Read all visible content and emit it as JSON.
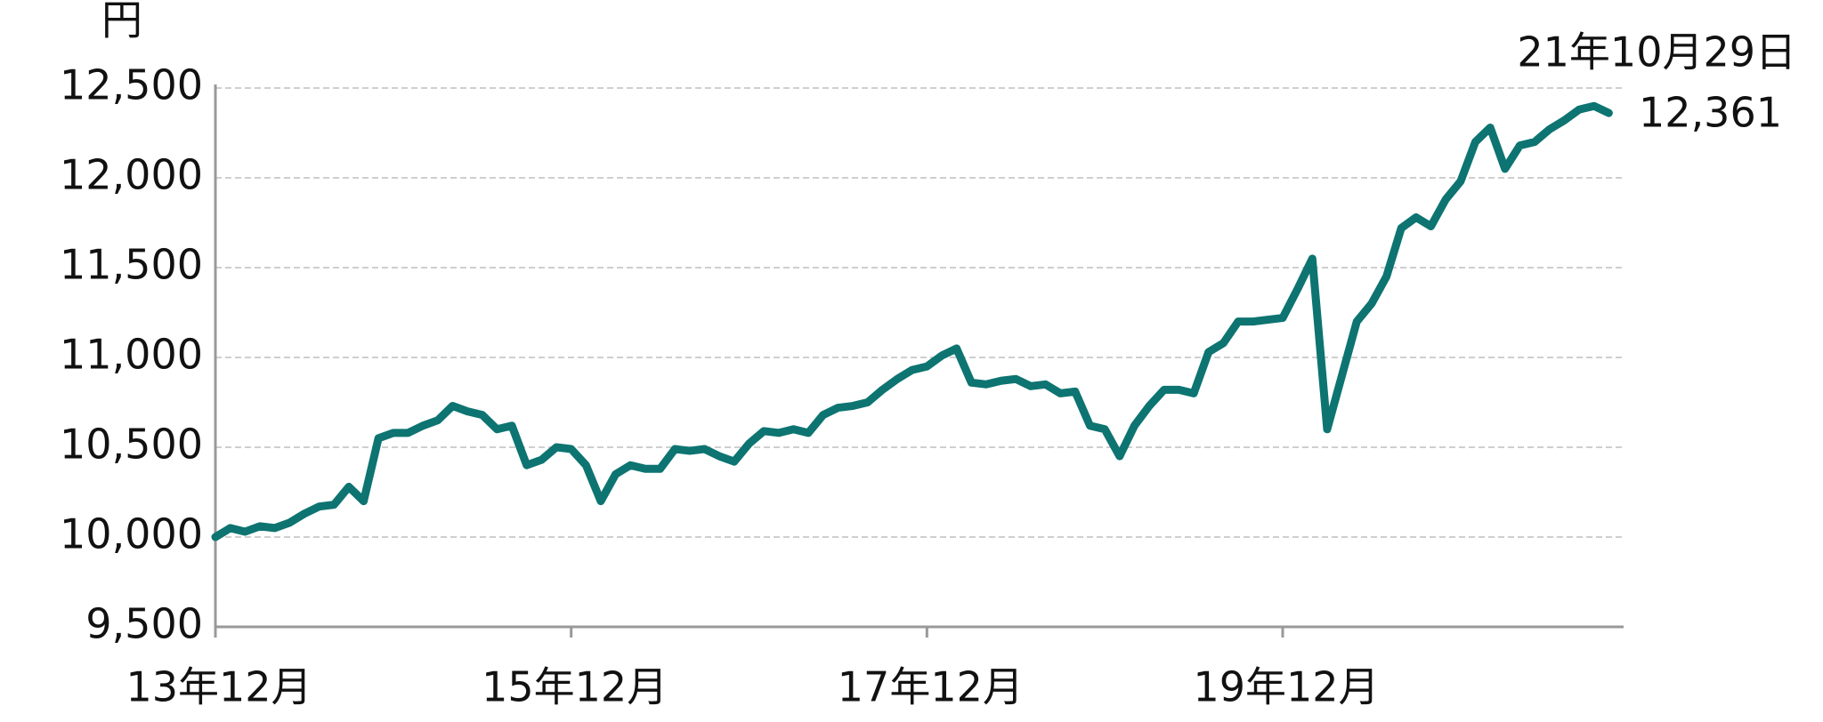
{
  "chart_data": {
    "type": "line",
    "y_unit": "円",
    "annotation": "21年10月29日",
    "categories": [
      "13年12月",
      null,
      null,
      null,
      null,
      null,
      null,
      null,
      null,
      null,
      null,
      null,
      null,
      null,
      null,
      null,
      null,
      null,
      null,
      null,
      null,
      null,
      null,
      null,
      "15年12月",
      null,
      null,
      null,
      null,
      null,
      null,
      null,
      null,
      null,
      null,
      null,
      null,
      null,
      null,
      null,
      null,
      null,
      null,
      null,
      null,
      null,
      null,
      null,
      "17年12月",
      null,
      null,
      null,
      null,
      null,
      null,
      null,
      null,
      null,
      null,
      null,
      null,
      null,
      null,
      null,
      null,
      null,
      null,
      null,
      null,
      null,
      null,
      null,
      "19年12月",
      null,
      null,
      null,
      null,
      null,
      null,
      null,
      null,
      null,
      null,
      null,
      null,
      null,
      null,
      null,
      null,
      null,
      null,
      null,
      null,
      null,
      null
    ],
    "values": [
      10000,
      10050,
      10030,
      10060,
      10050,
      10080,
      10130,
      10170,
      10180,
      10280,
      10200,
      10550,
      10580,
      10580,
      10620,
      10650,
      10730,
      10700,
      10680,
      10600,
      10620,
      10400,
      10430,
      10500,
      10490,
      10400,
      10200,
      10350,
      10400,
      10380,
      10380,
      10490,
      10480,
      10490,
      10450,
      10420,
      10520,
      10590,
      10580,
      10600,
      10580,
      10680,
      10720,
      10730,
      10750,
      10820,
      10880,
      10930,
      10950,
      11010,
      11050,
      10860,
      10850,
      10870,
      10880,
      10840,
      10850,
      10800,
      10810,
      10620,
      10600,
      10450,
      10620,
      10730,
      10820,
      10820,
      10800,
      11030,
      11080,
      11200,
      11200,
      11210,
      11220,
      11380,
      11550,
      10600,
      10900,
      11200,
      11300,
      11450,
      11720,
      11780,
      11730,
      11880,
      11980,
      12200,
      12280,
      12050,
      12180,
      12200,
      12270,
      12320,
      12380,
      12400,
      12361
    ],
    "value_labels": [
      null,
      null,
      null,
      null,
      null,
      null,
      null,
      null,
      null,
      null,
      null,
      null,
      null,
      null,
      null,
      null,
      null,
      null,
      null,
      null,
      null,
      null,
      null,
      null,
      null,
      null,
      null,
      null,
      null,
      null,
      null,
      null,
      null,
      null,
      null,
      null,
      null,
      null,
      null,
      null,
      null,
      null,
      null,
      null,
      null,
      null,
      null,
      null,
      null,
      null,
      null,
      null,
      null,
      null,
      null,
      null,
      null,
      null,
      null,
      null,
      null,
      null,
      null,
      null,
      null,
      null,
      null,
      null,
      null,
      null,
      null,
      null,
      null,
      null,
      null,
      null,
      null,
      null,
      null,
      null,
      null,
      null,
      null,
      null,
      null,
      null,
      null,
      null,
      null,
      null,
      null,
      null,
      null,
      null,
      "12,361"
    ],
    "color": "#0d7471",
    "ylim": [
      9500,
      12500
    ],
    "yticks": [
      {
        "value": 9500,
        "label": "9,500"
      },
      {
        "value": 10000,
        "label": "10,000"
      },
      {
        "value": 10500,
        "label": "10,500"
      },
      {
        "value": 11000,
        "label": "11,000"
      },
      {
        "value": 11500,
        "label": "11,500"
      },
      {
        "value": 12000,
        "label": "12,000"
      },
      {
        "value": 12500,
        "label": "12,500"
      }
    ],
    "grid": true
  }
}
